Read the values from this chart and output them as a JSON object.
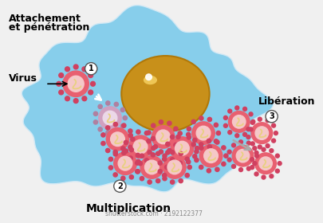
{
  "background_color": "#f0f0f0",
  "cell_color": "#87ceeb",
  "nucleus_color": "#c8901a",
  "nucleus_color2": "#b07808",
  "nucleus_highlight": "#f5d060",
  "virus_outer": "#e8607080",
  "virus_outer_hex": "#e86070",
  "virus_inner": "#f5c8c8",
  "virus_spike_color": "#d04060",
  "virus_rna_color": "#e8d080",
  "virus_faded_outer": "#d0a0c0",
  "virus_faded_inner": "#ecd8e8",
  "virus_faded_spike": "#b080a0",
  "label1_line1": "Attachement",
  "label1_line2": "et pénétration",
  "label_virus": "Virus",
  "label2": "Multiplication",
  "label3": "Libération",
  "step1_circle": "1",
  "step2_circle": "2",
  "step3_circle": "3",
  "watermark": "shutterstock.com · 2192122377"
}
